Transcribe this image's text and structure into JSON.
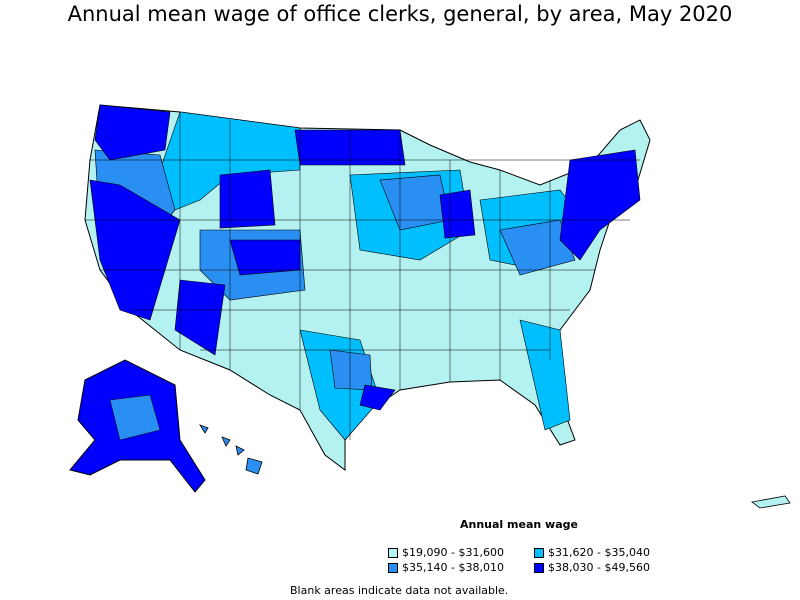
{
  "title": "Annual mean wage of office clerks, general, by area, May 2020",
  "legend": {
    "title": "Annual mean wage",
    "items": [
      {
        "label": "$19,090 - $31,600",
        "color": "#b3f2f0"
      },
      {
        "label": "$31,620 - $35,040",
        "color": "#00bfff"
      },
      {
        "label": "$35,140 - $38,010",
        "color": "#2a8ff2"
      },
      {
        "label": "$38,030 - $49,560",
        "color": "#0000ff"
      }
    ]
  },
  "footnote": "Blank areas indicate data not available."
}
